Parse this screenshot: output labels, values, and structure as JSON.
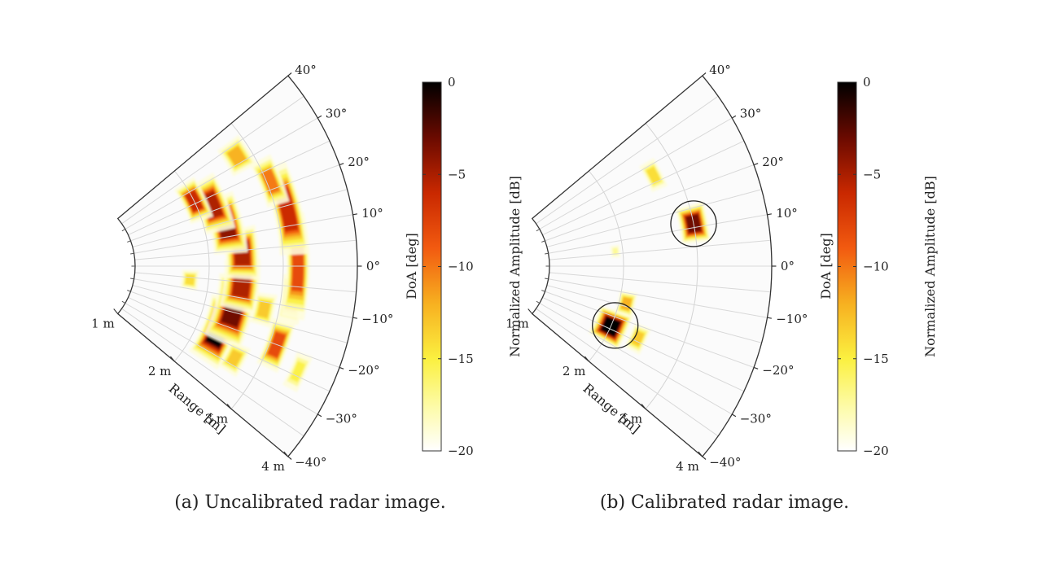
{
  "chart_data": [
    {
      "type": "heatmap",
      "subtype": "polar-sector",
      "caption": "(a) Uncalibrated radar image.",
      "angle_label": "DoA [deg]",
      "range_label": "Range [m]",
      "angle_ticks": [
        "40°",
        "30°",
        "20°",
        "10°",
        "0°",
        "−10°",
        "−20°",
        "−30°",
        "−40°"
      ],
      "angle_tick_values": [
        40,
        30,
        20,
        10,
        0,
        -10,
        -20,
        -30,
        -40
      ],
      "range_ticks": [
        "1 m",
        "2 m",
        "3 m",
        "4 m"
      ],
      "range_tick_values": [
        1,
        2,
        3,
        4
      ],
      "angle_range": [
        -40,
        40
      ],
      "range_range": [
        1,
        4
      ],
      "grid": true,
      "colorbar": {
        "label": "Normalized Amplitude [dB]",
        "ticks": [
          "0",
          "−5",
          "−10",
          "−15",
          "−20"
        ],
        "tick_values": [
          0,
          -5,
          -10,
          -15,
          -20
        ],
        "range": [
          -20,
          0
        ],
        "colormap": "afmhot-reversed"
      },
      "blobs": [
        {
          "range": 2.3,
          "angle": -22,
          "dr": 0.14,
          "da": 7,
          "peak": 0.0
        },
        {
          "range": 2.4,
          "angle": -14,
          "dr": 0.16,
          "da": 7,
          "peak": -3
        },
        {
          "range": 2.45,
          "angle": -6,
          "dr": 0.15,
          "da": 5,
          "peak": -5
        },
        {
          "range": 2.45,
          "angle": 4,
          "dr": 0.14,
          "da": 5,
          "peak": -5
        },
        {
          "range": 2.3,
          "angle": 14,
          "dr": 0.14,
          "da": 6,
          "peak": -4
        },
        {
          "range": 2.2,
          "angle": 22,
          "dr": 0.13,
          "da": 6,
          "peak": -5
        },
        {
          "range": 2.0,
          "angle": 26,
          "dr": 0.1,
          "da": 5,
          "peak": -6
        },
        {
          "range": 3.1,
          "angle": -20,
          "dr": 0.1,
          "da": 4,
          "peak": -8
        },
        {
          "range": 3.15,
          "angle": -8,
          "dr": 0.1,
          "da": 4,
          "peak": -12
        },
        {
          "range": 3.2,
          "angle": 0,
          "dr": 0.1,
          "da": 8,
          "peak": -8
        },
        {
          "range": 3.15,
          "angle": 14,
          "dr": 0.12,
          "da": 7,
          "peak": -6
        },
        {
          "range": 3.05,
          "angle": 22,
          "dr": 0.1,
          "da": 4,
          "peak": -10
        },
        {
          "range": 2.8,
          "angle": 32,
          "dr": 0.12,
          "da": 3,
          "peak": -12
        },
        {
          "range": 2.8,
          "angle": -12,
          "dr": 0.1,
          "da": 3,
          "peak": -13
        },
        {
          "range": 1.75,
          "angle": -6,
          "dr": 0.08,
          "da": 3,
          "peak": -14
        },
        {
          "range": 2.65,
          "angle": -28,
          "dr": 0.1,
          "da": 3,
          "peak": -13
        },
        {
          "range": 3.5,
          "angle": -24,
          "dr": 0.08,
          "da": 3,
          "peak": -15
        }
      ]
    },
    {
      "type": "heatmap",
      "subtype": "polar-sector",
      "caption": "(b) Calibrated radar image.",
      "angle_label": "DoA [deg]",
      "range_label": "Range [m]",
      "angle_ticks": [
        "40°",
        "30°",
        "20°",
        "10°",
        "0°",
        "−10°",
        "−20°",
        "−30°",
        "−40°"
      ],
      "angle_tick_values": [
        40,
        30,
        20,
        10,
        0,
        -10,
        -20,
        -30,
        -40
      ],
      "range_ticks": [
        "1 m",
        "2 m",
        "3 m",
        "4 m"
      ],
      "range_tick_values": [
        1,
        2,
        3,
        4
      ],
      "angle_range": [
        -40,
        40
      ],
      "range_range": [
        1,
        4
      ],
      "grid": true,
      "colorbar": {
        "label": "Normalized Amplitude [dB]",
        "ticks": [
          "0",
          "−5",
          "−10",
          "−15",
          "−20"
        ],
        "tick_values": [
          0,
          -5,
          -10,
          -15,
          -20
        ],
        "range": [
          -20,
          0
        ],
        "colormap": "afmhot-reversed"
      },
      "blobs": [
        {
          "range": 2.0,
          "angle": -24,
          "dr": 0.14,
          "da": 4,
          "peak": 0.0
        },
        {
          "range": 2.1,
          "angle": -14,
          "dr": 0.08,
          "da": 3,
          "peak": -12
        },
        {
          "range": 2.4,
          "angle": -24,
          "dr": 0.08,
          "da": 3,
          "peak": -13
        },
        {
          "range": 3.0,
          "angle": 11,
          "dr": 0.12,
          "da": 3,
          "peak": -3
        },
        {
          "range": 2.7,
          "angle": 27,
          "dr": 0.08,
          "da": 3,
          "peak": -14
        },
        {
          "range": 1.9,
          "angle": 6,
          "dr": 0.05,
          "da": 2,
          "peak": -17
        }
      ],
      "circled_targets": [
        {
          "range": 2.05,
          "angle": -23
        },
        {
          "range": 3.0,
          "angle": 11
        }
      ]
    }
  ]
}
